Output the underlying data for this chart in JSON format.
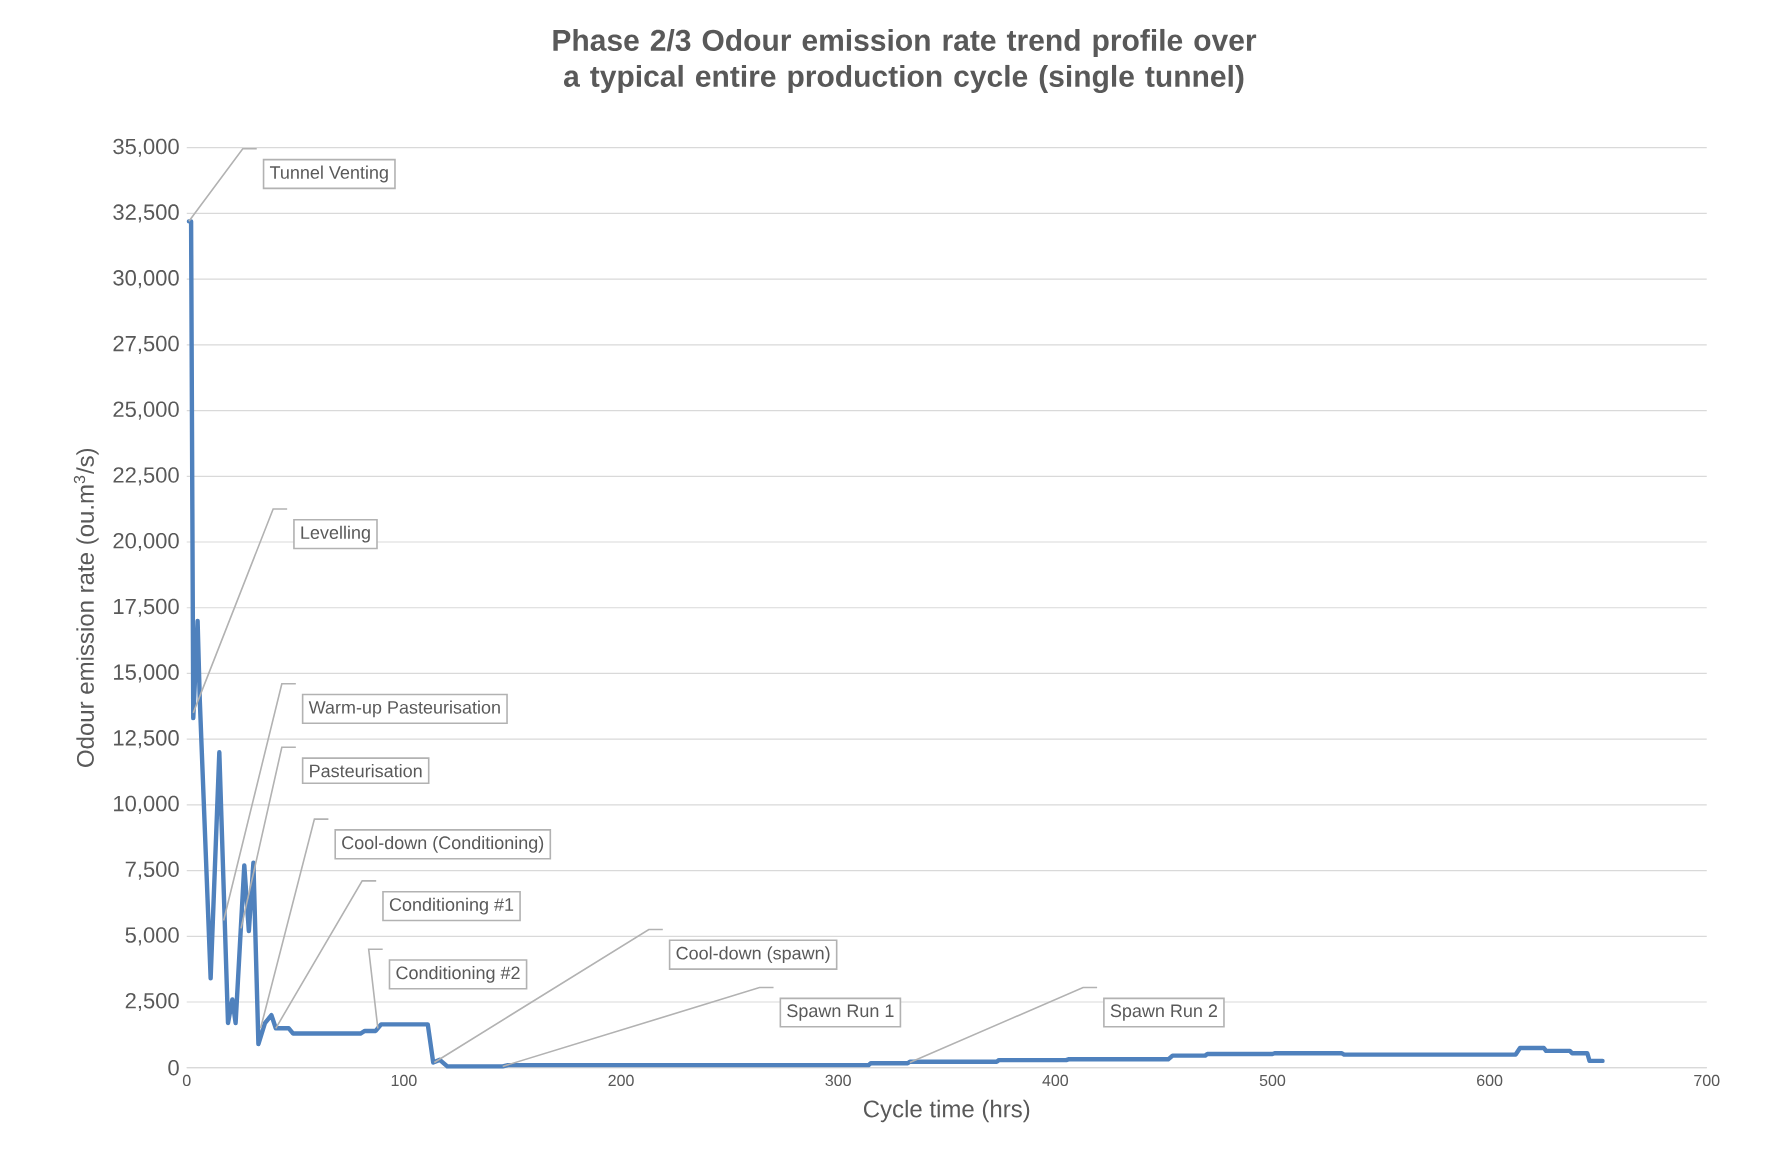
{
  "chart_data": {
    "type": "line",
    "title": "Phase 2/3 Odour emission rate trend profile over a typical entire production cycle (single tunnel)",
    "xlabel": "Cycle time (hrs)",
    "ylabel": "Odour emission rate (ou.m$^{3}$/s)",
    "series": [
      {
        "color": "#4f81bd",
        "x": [
          1,
          2,
          3,
          5,
          6,
          11,
          15,
          19,
          21,
          22.5,
          26.5,
          28.6,
          30.7,
          33,
          36,
          39,
          41,
          47,
          49,
          80,
          82,
          87,
          89.5,
          111,
          113.5,
          116.5,
          120,
          145.5,
          148,
          314,
          315,
          332,
          333,
          373,
          374,
          405,
          406,
          452,
          454,
          469,
          470,
          500,
          501,
          532,
          533,
          612,
          614,
          625,
          626,
          637,
          638,
          645,
          646,
          652
        ],
        "values": [
          32200,
          32200,
          13300,
          17000,
          14000,
          3400,
          12000,
          1700,
          2600,
          1700,
          7700,
          5200,
          7800,
          900,
          1700,
          2000,
          1500,
          1500,
          1300,
          1300,
          1400,
          1400,
          1650,
          1650,
          200,
          300,
          50,
          50,
          100,
          100,
          170,
          170,
          230,
          230,
          290,
          290,
          320,
          320,
          460,
          460,
          520,
          520,
          550,
          550,
          500,
          500,
          750,
          750,
          640,
          640,
          550,
          550,
          260,
          260
        ]
      }
    ],
    "xlim": [
      0,
      700
    ],
    "xticks": [
      0,
      100,
      200,
      300,
      400,
      500,
      600,
      700
    ],
    "ylim": [
      0,
      35000
    ],
    "yticks": [
      {
        "value": 0,
        "label": "0"
      },
      {
        "value": 2500,
        "label": "2,500"
      },
      {
        "value": 5000,
        "label": "5,000"
      },
      {
        "value": 7500,
        "label": "7,500"
      },
      {
        "value": 10000,
        "label": "10,000"
      },
      {
        "value": 12500,
        "label": "12,500"
      },
      {
        "value": 15000,
        "label": "15,000"
      },
      {
        "value": 17500,
        "label": "17,500"
      },
      {
        "value": 20000,
        "label": "20,000"
      },
      {
        "value": 22500,
        "label": "22,500"
      },
      {
        "value": 25000,
        "label": "25,000"
      },
      {
        "value": 27500,
        "label": "27,500"
      },
      {
        "value": 30000,
        "label": "30,000"
      },
      {
        "value": 32500,
        "label": "32,500"
      },
      {
        "value": 35000,
        "label": "35,000"
      }
    ],
    "grid": "y",
    "marker": "none",
    "line_style": "solid",
    "annotations": [
      {
        "text": "Tunnel Venting",
        "x": 1,
        "y": 32200
      },
      {
        "text": "Levelling",
        "x": 3,
        "y": 13500
      },
      {
        "text": "Warm-up Pasteurisation",
        "x": 17,
        "y": 5600
      },
      {
        "text": "Pasteurisation",
        "x": 25,
        "y": 5300
      },
      {
        "text": "Cool-down (Conditioning)",
        "x": 34,
        "y": 1500
      },
      {
        "text": "Conditioning #1",
        "x": 41,
        "y": 1500
      },
      {
        "text": "Conditioning #2",
        "x": 88,
        "y": 1500
      },
      {
        "text": "Cool-down (spawn)",
        "x": 114,
        "y": 200
      },
      {
        "text": "Spawn Run 1",
        "x": 145.5,
        "y": 50
      },
      {
        "text": "Spawn Run 2",
        "x": 333,
        "y": 200
      }
    ]
  }
}
